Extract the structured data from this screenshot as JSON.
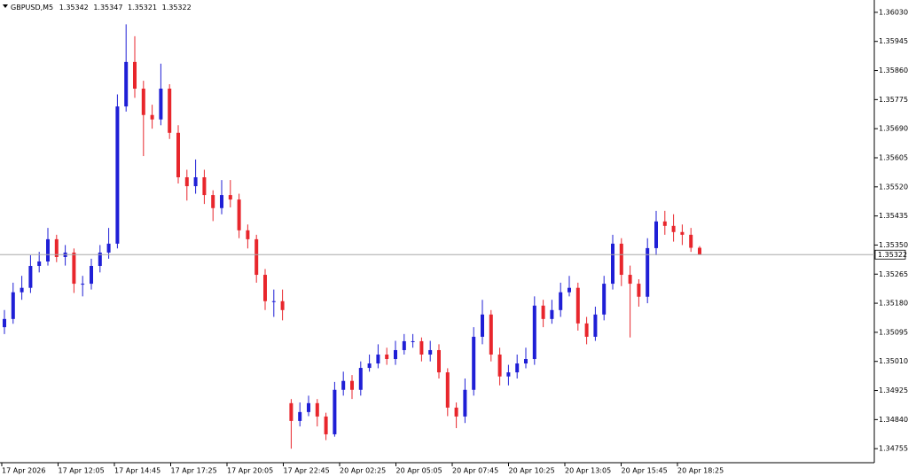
{
  "chart_data": {
    "type": "candlestick",
    "symbol": "GBPUSD,M5",
    "up_color": "#1f1fd6",
    "down_color": "#e8262c",
    "ylim": [
      1.34714,
      1.36066
    ],
    "yticks": [
      {
        "value": 1.3603,
        "label": "1.36030"
      },
      1.35945,
      {
        "value": 1.3586,
        "label": "1.35860"
      },
      1.35775,
      {
        "value": 1.3569,
        "label": "1.35690"
      },
      1.35605,
      {
        "value": 1.3552,
        "label": "1.35520"
      },
      1.35435,
      {
        "value": 1.3535,
        "label": "1.35350"
      },
      1.35265,
      {
        "value": 1.3518,
        "label": "1.35180"
      },
      1.35095,
      {
        "value": 1.3501,
        "label": "1.35010"
      },
      1.34925,
      {
        "value": 1.3484,
        "label": "1.34840"
      },
      1.34755
    ],
    "xlabels": [
      "17 Apr 2026",
      "17 Apr 12:05",
      "17 Apr 14:45",
      "17 Apr 17:25",
      "17 Apr 20:05",
      "17 Apr 22:45",
      "20 Apr 02:25",
      "20 Apr 05:05",
      "20 Apr 07:45",
      "20 Apr 10:25",
      "20 Apr 13:05",
      "20 Apr 15:45",
      "20 Apr 18:25"
    ],
    "open": [
      1.3511,
      1.35134,
      1.35212,
      1.35225,
      1.35289,
      1.35302,
      1.35367,
      1.35315,
      1.35328,
      1.35237,
      1.35237,
      1.35289,
      1.35328,
      1.35354,
      1.35755,
      1.35885,
      1.35807,
      1.3573,
      1.35717,
      1.35807,
      1.35678,
      1.35548,
      1.35522,
      1.35548,
      1.35496,
      1.35458,
      1.35496,
      1.35483,
      1.35393,
      1.35367,
      1.35263,
      1.35186,
      1.35186,
      1.34888,
      1.34836,
      1.34862,
      1.34888,
      1.34849,
      1.34797,
      1.34927,
      1.34953,
      1.34927,
      1.34991,
      1.35004,
      1.3503,
      1.35017,
      1.35043,
      1.35069,
      1.35069,
      1.3503,
      1.35043,
      1.34978,
      1.34875,
      1.34849,
      1.34927,
      1.35082,
      1.35147,
      1.3503,
      1.34966,
      1.34978,
      1.35004,
      1.35017,
      1.35173,
      1.35134,
      1.3516,
      1.35212,
      1.35225,
      1.35121,
      1.35082,
      1.35147,
      1.35237,
      1.35354,
      1.35263,
      1.35237,
      1.35199,
      1.35341,
      1.35419,
      1.35406,
      1.35388,
      1.3538,
      1.35342
    ],
    "high": [
      1.3516,
      1.3524,
      1.3526,
      1.3532,
      1.3533,
      1.354,
      1.3538,
      1.3535,
      1.3534,
      1.3526,
      1.3531,
      1.3535,
      1.354,
      1.3579,
      1.35995,
      1.3596,
      1.3583,
      1.3576,
      1.3588,
      1.3582,
      1.357,
      1.3557,
      1.356,
      1.3557,
      1.3551,
      1.3554,
      1.3554,
      1.355,
      1.3541,
      1.3538,
      1.3528,
      1.3522,
      1.3522,
      1.349,
      1.3489,
      1.3491,
      1.349,
      1.3486,
      1.3495,
      1.3498,
      1.3497,
      1.3501,
      1.3503,
      1.3506,
      1.3505,
      1.3507,
      1.3509,
      1.3509,
      1.3508,
      1.3507,
      1.3506,
      1.3499,
      1.3489,
      1.3496,
      1.3511,
      1.3519,
      1.3516,
      1.3505,
      1.35,
      1.3503,
      1.3505,
      1.352,
      1.3519,
      1.3519,
      1.3524,
      1.3526,
      1.3524,
      1.3514,
      1.3517,
      1.3526,
      1.3538,
      1.3537,
      1.3529,
      1.3525,
      1.3537,
      1.3545,
      1.3545,
      1.3544,
      1.3541,
      1.354,
      1.35347
    ],
    "low": [
      1.3509,
      1.3512,
      1.3519,
      1.3521,
      1.3527,
      1.3529,
      1.353,
      1.3529,
      1.3521,
      1.352,
      1.3522,
      1.3527,
      1.3531,
      1.3534,
      1.3574,
      1.3578,
      1.3561,
      1.3569,
      1.357,
      1.3566,
      1.3553,
      1.3548,
      1.355,
      1.3547,
      1.3542,
      1.3544,
      1.3546,
      1.3537,
      1.3534,
      1.3524,
      1.3516,
      1.3514,
      1.3513,
      1.34755,
      1.3482,
      1.3485,
      1.3482,
      1.3478,
      1.3479,
      1.3491,
      1.349,
      1.3491,
      1.3498,
      1.3499,
      1.35,
      1.35,
      1.3503,
      1.3505,
      1.3501,
      1.3501,
      1.3496,
      1.3485,
      1.34815,
      1.3483,
      1.3491,
      1.3506,
      1.3501,
      1.3494,
      1.3494,
      1.3496,
      1.3499,
      1.35,
      1.3511,
      1.3512,
      1.3514,
      1.352,
      1.351,
      1.3506,
      1.3507,
      1.3513,
      1.3522,
      1.3523,
      1.3508,
      1.3517,
      1.3518,
      1.3532,
      1.3538,
      1.3536,
      1.3535,
      1.3533,
      1.35321
    ],
    "close": [
      1.35134,
      1.35212,
      1.35225,
      1.35289,
      1.35302,
      1.35367,
      1.35315,
      1.35328,
      1.35237,
      1.35237,
      1.35289,
      1.35328,
      1.35354,
      1.35755,
      1.35885,
      1.35807,
      1.3573,
      1.35717,
      1.35807,
      1.35678,
      1.35548,
      1.35522,
      1.35548,
      1.35496,
      1.35458,
      1.35496,
      1.35483,
      1.35393,
      1.35367,
      1.35263,
      1.35186,
      1.35186,
      1.3516,
      1.34836,
      1.34862,
      1.34888,
      1.34849,
      1.34797,
      1.34927,
      1.34953,
      1.34927,
      1.34991,
      1.35004,
      1.3503,
      1.35017,
      1.35043,
      1.35069,
      1.35069,
      1.3503,
      1.35043,
      1.34978,
      1.34875,
      1.34849,
      1.34927,
      1.35082,
      1.35147,
      1.3503,
      1.34966,
      1.34978,
      1.35004,
      1.35017,
      1.35173,
      1.35134,
      1.3516,
      1.35212,
      1.35225,
      1.35121,
      1.35082,
      1.35147,
      1.35237,
      1.35354,
      1.35263,
      1.35237,
      1.35199,
      1.35341,
      1.35419,
      1.35406,
      1.35388,
      1.3538,
      1.35342,
      1.35322
    ]
  }
}
